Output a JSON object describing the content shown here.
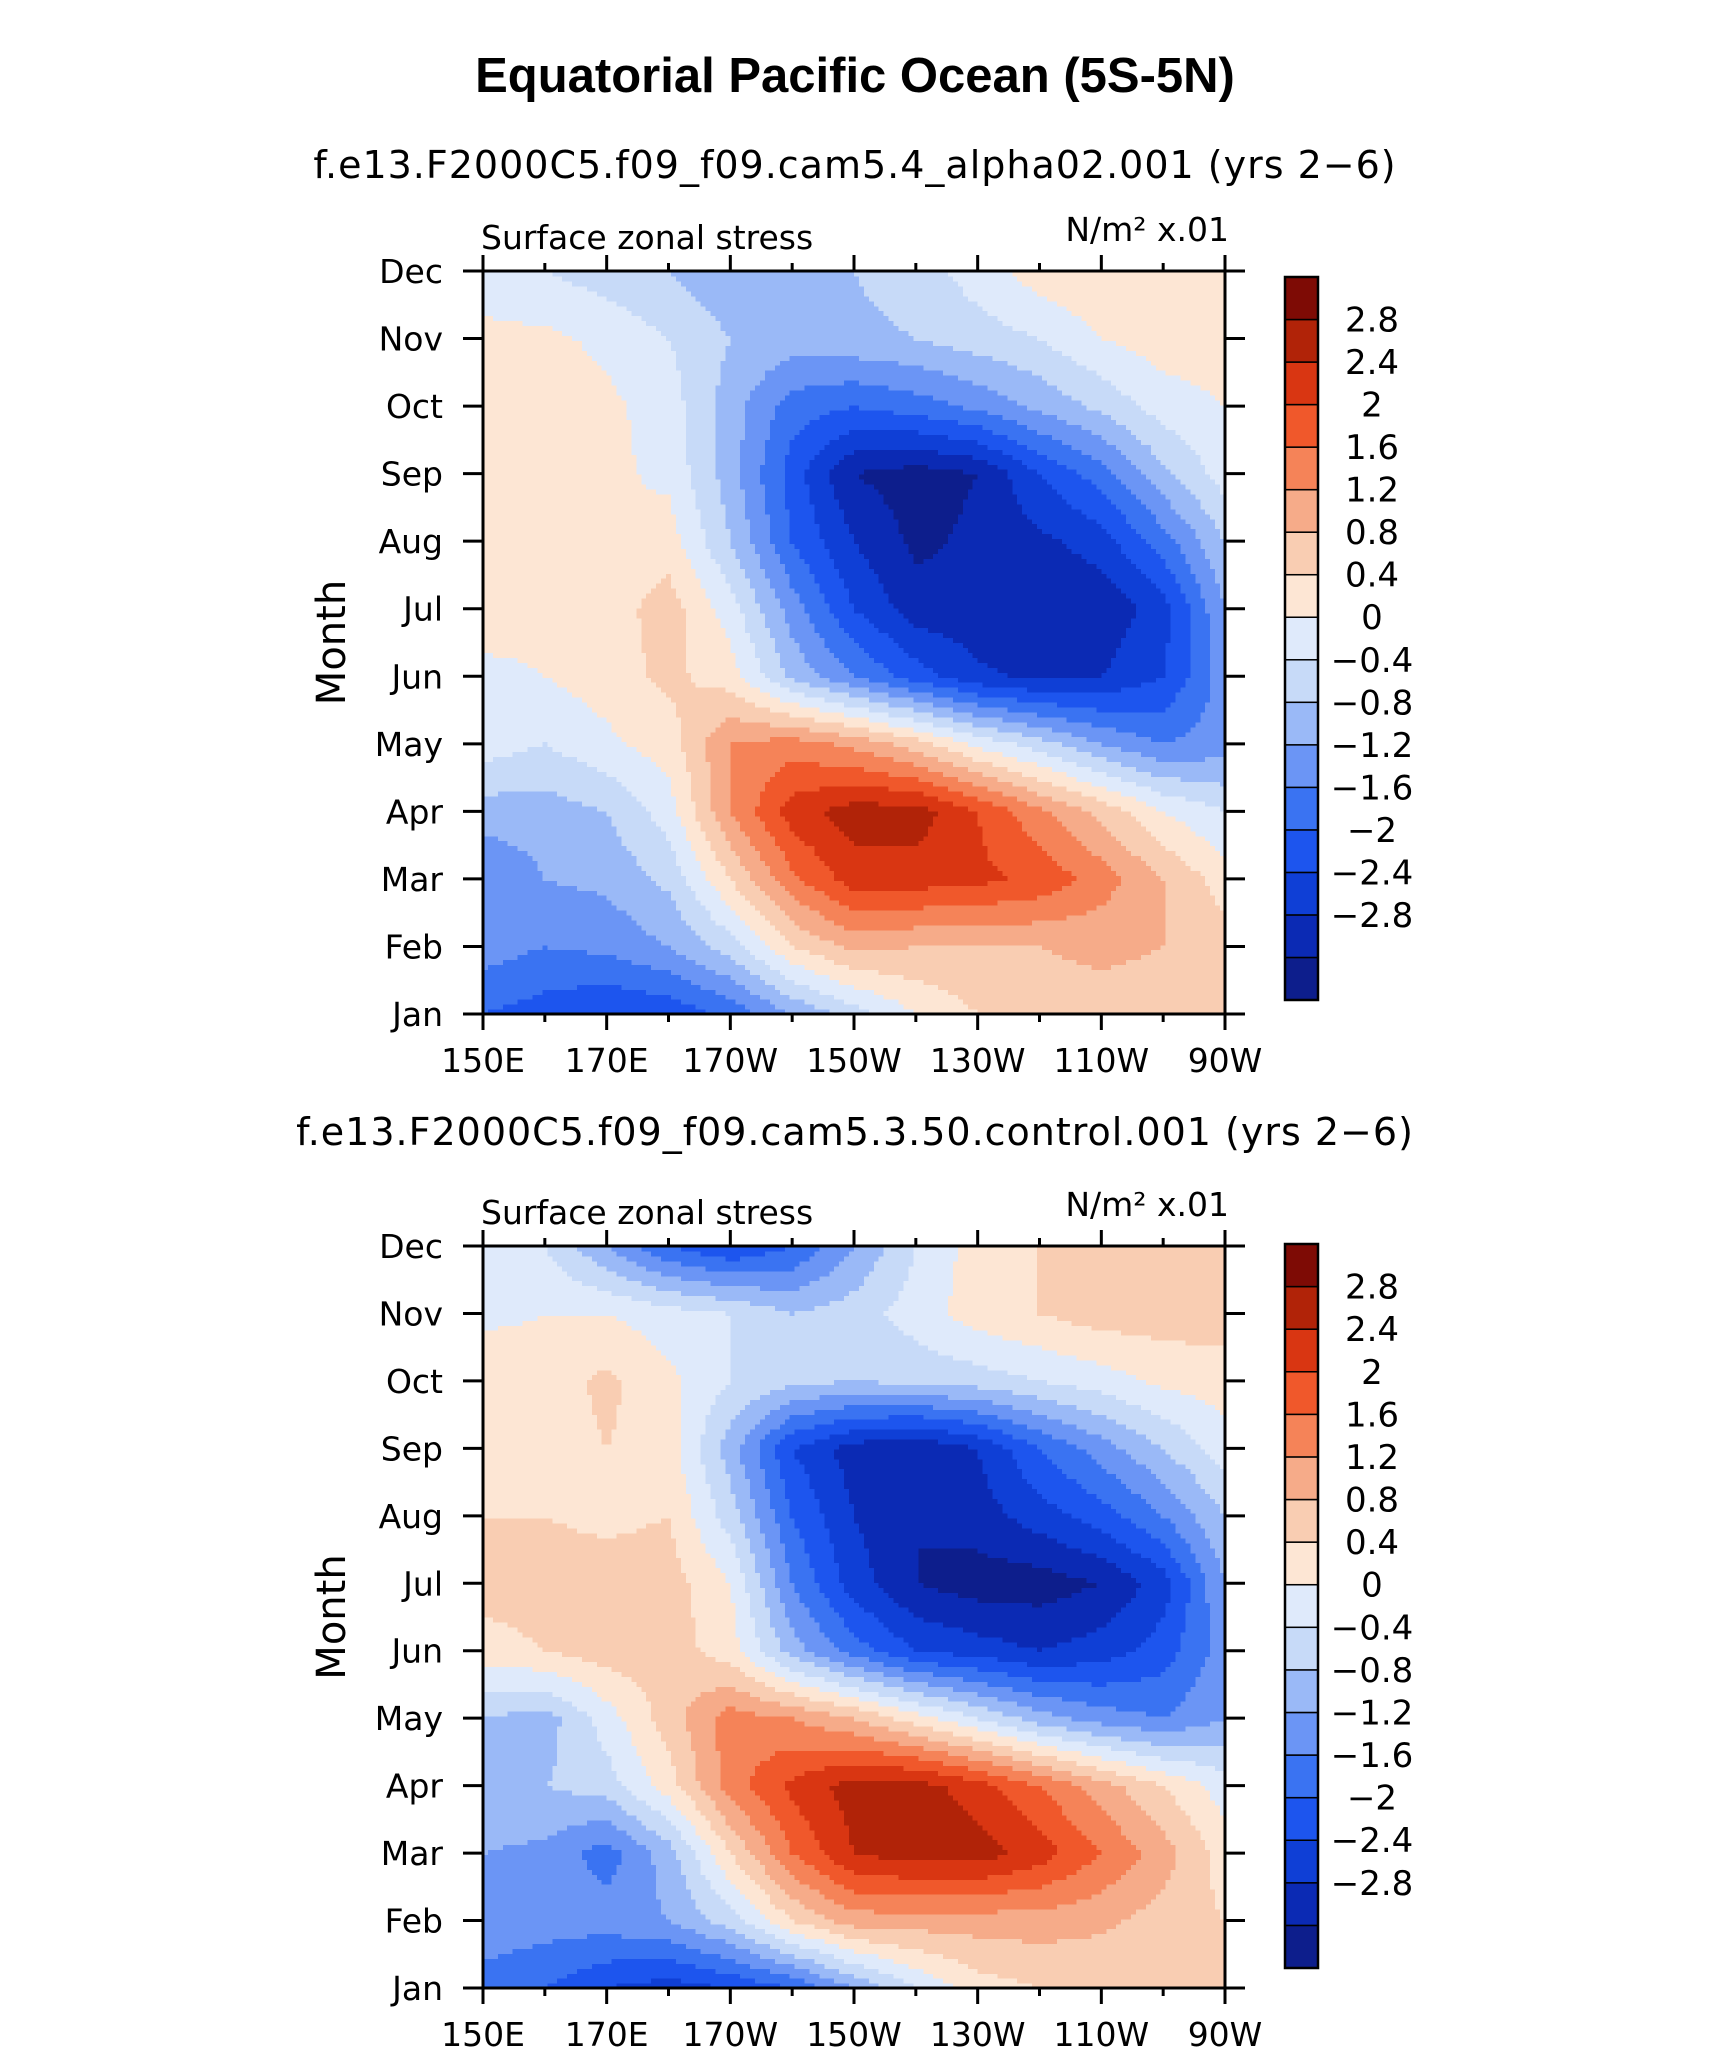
{
  "title": "Equatorial Pacific Ocean (5S-5N)",
  "colors": {
    "levels_bounds": [
      -3.2,
      -2.8,
      -2.4,
      -2.0,
      -1.6,
      -1.2,
      -0.8,
      -0.4,
      0,
      0.4,
      0.8,
      1.2,
      1.6,
      2.0,
      2.4,
      2.8,
      3.2
    ],
    "palette": [
      "#0d1e8c",
      "#0b2ab4",
      "#0f3fd6",
      "#1d55ee",
      "#3a73f2",
      "#6b95f5",
      "#9ab9f7",
      "#c7daf8",
      "#dfeafb",
      "#fde6d4",
      "#f9cdb2",
      "#f6ab89",
      "#f58358",
      "#f0582b",
      "#d93612",
      "#b12308",
      "#7e0b05"
    ]
  },
  "chart_data": [
    {
      "type": "heatmap",
      "subtitle": "f.e13.F2000C5.f09_f09.cam5.4_alpha02.001 (yrs 2−6)",
      "left_label": "Surface zonal stress",
      "right_label": "N/m² x.01",
      "ylabel": "Month",
      "x_ticks": [
        "150E",
        "170E",
        "170W",
        "150W",
        "130W",
        "110W",
        "90W"
      ],
      "y_ticks": [
        "Jan",
        "Feb",
        "Mar",
        "Apr",
        "May",
        "Jun",
        "Jul",
        "Aug",
        "Sep",
        "Oct",
        "Nov",
        "Dec"
      ],
      "colorbar_labels": [
        "2.8",
        "2.4",
        "2",
        "1.6",
        "1.2",
        "0.8",
        "0.4",
        "0",
        "−0.4",
        "−0.8",
        "−1.2",
        "−1.6",
        "−2",
        "−2.4",
        "−2.8"
      ],
      "x": [
        150,
        160,
        170,
        180,
        190,
        200,
        210,
        220,
        230,
        240,
        250,
        260,
        270
      ],
      "y": [
        "Jan",
        "Feb",
        "Mar",
        "Apr",
        "May",
        "Jun",
        "Jul",
        "Aug",
        "Sep",
        "Oct",
        "Nov",
        "Dec"
      ],
      "z": [
        [
          -1.6,
          -1.8,
          -2.0,
          -1.9,
          -1.5,
          -0.8,
          -0.2,
          0.4,
          0.8,
          1.0,
          1.0,
          1.0,
          1.2
        ],
        [
          -1.0,
          -1.2,
          -1.1,
          -0.8,
          -0.2,
          0.8,
          1.3,
          1.2,
          1.2,
          1.2,
          1.3,
          1.2,
          1.0
        ],
        [
          -1.2,
          -0.8,
          -0.7,
          -0.3,
          0.8,
          1.9,
          2.6,
          2.6,
          2.5,
          2.3,
          1.8,
          1.2,
          0.6
        ],
        [
          -0.6,
          -0.6,
          -0.4,
          0.2,
          1.6,
          2.6,
          3.0,
          3.0,
          2.4,
          1.7,
          1.1,
          0.4,
          0.0
        ],
        [
          0.2,
          0.0,
          0.3,
          0.6,
          1.6,
          1.8,
          1.5,
          1.0,
          0.3,
          -0.2,
          -0.8,
          -1.2,
          -1.0
        ],
        [
          0.2,
          0.4,
          0.6,
          0.9,
          0.6,
          -0.5,
          -1.2,
          -1.8,
          -2.3,
          -2.5,
          -2.4,
          -2.0,
          -1.0
        ],
        [
          0.8,
          0.6,
          0.6,
          1.0,
          0.2,
          -1.0,
          -2.0,
          -2.6,
          -2.7,
          -2.8,
          -2.7,
          -2.2,
          -0.8
        ],
        [
          0.6,
          0.5,
          0.4,
          0.6,
          -0.4,
          -1.6,
          -2.4,
          -2.9,
          -2.7,
          -2.5,
          -2.2,
          -1.4,
          -0.4
        ],
        [
          0.6,
          0.7,
          0.5,
          0.3,
          -0.6,
          -1.8,
          -2.8,
          -3.0,
          -2.8,
          -2.0,
          -1.4,
          -0.5,
          0.2
        ],
        [
          0.6,
          0.7,
          0.5,
          0.2,
          -0.6,
          -1.4,
          -1.6,
          -1.4,
          -1.1,
          -0.7,
          -0.3,
          0.2,
          0.4
        ],
        [
          0.5,
          0.5,
          0.3,
          0.0,
          -0.4,
          -0.6,
          -0.5,
          -0.4,
          -0.2,
          0.0,
          0.4,
          0.6,
          0.6
        ],
        [
          0.2,
          0.0,
          -0.2,
          -0.4,
          -0.7,
          -0.6,
          -0.4,
          -0.2,
          0.2,
          0.6,
          0.8,
          0.8,
          0.6
        ]
      ],
      "xlim": [
        150,
        270
      ],
      "ylim": [
        "Jan",
        "Dec"
      ]
    },
    {
      "type": "heatmap",
      "subtitle": "f.e13.F2000C5.f09_f09.cam5.3.50.control.001 (yrs 2−6)",
      "left_label": "Surface zonal stress",
      "right_label": "N/m² x.01",
      "ylabel": "Month",
      "x_ticks": [
        "150E",
        "170E",
        "170W",
        "150W",
        "130W",
        "110W",
        "90W"
      ],
      "y_ticks": [
        "Jan",
        "Feb",
        "Mar",
        "Apr",
        "May",
        "Jun",
        "Jul",
        "Aug",
        "Sep",
        "Oct",
        "Nov",
        "Dec"
      ],
      "colorbar_labels": [
        "2.8",
        "2.4",
        "2",
        "1.6",
        "1.2",
        "0.8",
        "0.4",
        "0",
        "−0.4",
        "−0.8",
        "−1.2",
        "−1.6",
        "−2",
        "−2.4",
        "−2.8"
      ],
      "x": [
        150,
        160,
        170,
        180,
        190,
        200,
        210,
        220,
        230,
        240,
        250,
        260,
        270
      ],
      "y": [
        "Jan",
        "Feb",
        "Mar",
        "Apr",
        "May",
        "Jun",
        "Jul",
        "Aug",
        "Sep",
        "Oct",
        "Nov",
        "Dec"
      ],
      "z": [
        [
          -1.4,
          -1.6,
          -2.0,
          -2.2,
          -2.0,
          -1.6,
          -0.8,
          0.0,
          0.6,
          0.8,
          0.8,
          0.8,
          1.0
        ],
        [
          -0.9,
          -1.0,
          -1.0,
          -0.8,
          -0.2,
          0.8,
          1.4,
          1.4,
          1.4,
          1.4,
          1.3,
          1.0,
          0.8
        ],
        [
          -0.8,
          -0.9,
          -1.4,
          -0.6,
          0.8,
          2.0,
          2.8,
          3.0,
          3.0,
          2.6,
          2.0,
          1.4,
          0.6
        ],
        [
          -0.5,
          -0.4,
          -0.2,
          0.6,
          1.8,
          2.5,
          3.0,
          3.0,
          2.6,
          2.0,
          1.4,
          0.8,
          0.2
        ],
        [
          -0.4,
          -0.6,
          0.2,
          1.0,
          1.8,
          1.6,
          1.2,
          0.6,
          0.0,
          -0.6,
          -1.0,
          -1.2,
          -0.8
        ],
        [
          0.6,
          0.8,
          1.0,
          1.0,
          0.6,
          -0.6,
          -1.4,
          -2.0,
          -2.2,
          -2.4,
          -2.2,
          -1.8,
          -1.0
        ],
        [
          1.0,
          1.0,
          1.0,
          1.0,
          0.4,
          -1.2,
          -2.2,
          -2.8,
          -3.0,
          -3.0,
          -2.8,
          -2.2,
          -0.8
        ],
        [
          0.8,
          0.8,
          0.7,
          0.8,
          -0.2,
          -1.6,
          -2.4,
          -2.8,
          -2.6,
          -2.2,
          -1.8,
          -1.2,
          -0.4
        ],
        [
          0.6,
          0.6,
          0.8,
          0.6,
          -0.6,
          -2.0,
          -2.6,
          -2.8,
          -2.4,
          -1.6,
          -1.0,
          -0.4,
          0.2
        ],
        [
          0.7,
          0.6,
          0.9,
          0.5,
          0.0,
          -0.3,
          -0.4,
          -0.3,
          -0.2,
          0.0,
          0.2,
          0.5,
          0.6
        ],
        [
          0.3,
          0.4,
          0.4,
          0.2,
          0.0,
          -0.4,
          -0.2,
          0.2,
          0.6,
          0.8,
          1.0,
          1.0,
          1.0
        ],
        [
          0.2,
          0.0,
          -0.8,
          -1.6,
          -2.0,
          -1.6,
          -0.8,
          0.0,
          0.6,
          0.8,
          1.0,
          1.0,
          1.0
        ]
      ],
      "xlim": [
        150,
        270
      ],
      "ylim": [
        "Jan",
        "Dec"
      ]
    }
  ]
}
